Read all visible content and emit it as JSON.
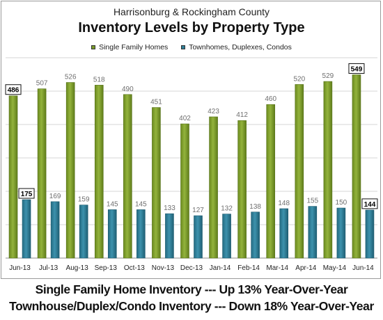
{
  "chart_data": {
    "type": "bar",
    "subtitle": "Harrisonburg & Rockingham County",
    "title": "Inventory Levels by Property Type",
    "categories": [
      "Jun-13",
      "Jul-13",
      "Aug-13",
      "Sep-13",
      "Oct-13",
      "Nov-13",
      "Dec-13",
      "Jan-14",
      "Feb-14",
      "Mar-14",
      "Apr-14",
      "May-14",
      "Jun-14"
    ],
    "series": [
      {
        "name": "Single Family Homes",
        "color": "#7a9b2a",
        "values": [
          486,
          507,
          526,
          518,
          490,
          451,
          402,
          423,
          412,
          460,
          520,
          529,
          549
        ]
      },
      {
        "name": "Townhomes, Duplexes, Condos",
        "color": "#2f7f98",
        "values": [
          175,
          169,
          159,
          145,
          145,
          133,
          127,
          132,
          138,
          148,
          155,
          150,
          144
        ]
      }
    ],
    "boxed_labels": [
      {
        "series": 0,
        "index": 0
      },
      {
        "series": 0,
        "index": 12
      },
      {
        "series": 1,
        "index": 0
      },
      {
        "series": 1,
        "index": 12
      }
    ],
    "ylim": [
      0,
      600
    ],
    "grid": true,
    "legend_position": "top-center"
  },
  "captions": {
    "line1": "Single Family Home Inventory --- Up 13% Year-Over-Year",
    "line2": "Townhouse/Duplex/Condo Inventory --- Down 18% Year-Over-Year"
  }
}
